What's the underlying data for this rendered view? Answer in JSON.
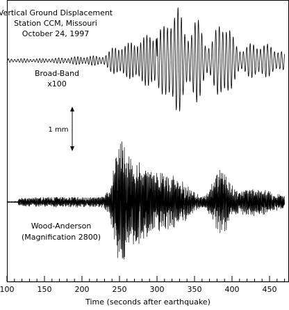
{
  "chart_data": {
    "type": "line",
    "title": [
      "Vertical Ground Displacement",
      "Station CCM, Missouri",
      "October 24, 1997"
    ],
    "xlabel": "Time (seconds after earthquake)",
    "xlim": [
      100,
      475
    ],
    "xticks": [
      100,
      150,
      200,
      250,
      300,
      350,
      400,
      450
    ],
    "grid": false,
    "series": [
      {
        "name": "Broad-Band x100",
        "label_lines": [
          "Broad-Band",
          "x100"
        ],
        "start": 100,
        "end": 470,
        "description": "smooth oscillation; low-amplitude noise before ~230 s, first arrival near 240 s, large packet 315-335 s, second large packet 375-400 s, decaying coda"
      },
      {
        "name": "Wood-Anderson (Magnification 2800)",
        "label_lines": [
          "Wood-Anderson",
          "(Magnification 2800)"
        ],
        "start": 100,
        "end": 470,
        "description": "high-frequency trace; noise from ~115 s, strong burst beginning ~240 s peaking near 250 s, sustained shaking 250-300 s, second packet 370-400 s, decaying coda"
      }
    ],
    "scale_bar": {
      "label": "1 mm"
    }
  }
}
